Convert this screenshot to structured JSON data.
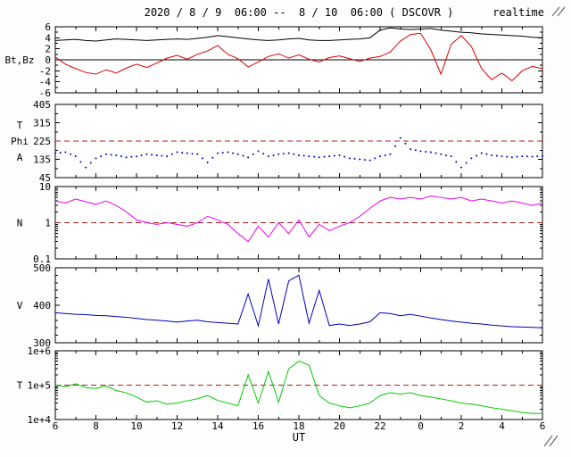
{
  "header": {
    "title": "2020 / 8 / 9  06:00 --  8 / 10  06:00 ( DSCOVR )",
    "realtime": "realtime"
  },
  "chart_data": {
    "type": "line",
    "title": "2020 / 8 / 9  06:00 --  8 / 10  06:00 ( DSCOVR )",
    "xlabel": "UT",
    "x_range": [
      6,
      30
    ],
    "x_ticks": {
      "values": [
        6,
        8,
        10,
        12,
        14,
        16,
        18,
        20,
        22,
        24,
        26,
        28,
        30
      ],
      "labels": [
        "6",
        "8",
        "10",
        "12",
        "14",
        "16",
        "18",
        "20",
        "22",
        "0",
        "2",
        "4",
        "6"
      ]
    },
    "x_minor_step": 1,
    "x_hours": [
      6,
      6.5,
      7,
      7.5,
      8,
      8.5,
      9,
      9.5,
      10,
      10.5,
      11,
      11.5,
      12,
      12.5,
      13,
      13.5,
      14,
      14.5,
      15,
      15.5,
      16,
      16.5,
      17,
      17.5,
      18,
      18.5,
      19,
      19.5,
      20,
      20.5,
      21,
      21.5,
      22,
      22.5,
      23,
      23.5,
      24,
      24.5,
      25,
      25.5,
      26,
      26.5,
      27,
      27.5,
      28,
      28.5,
      29,
      29.5,
      30
    ],
    "panels": [
      {
        "id": "btbz",
        "label_lines": [
          "Bt,Bz"
        ],
        "yscale": "linear",
        "ymin": -6,
        "ymax": 6,
        "yticks": [
          {
            "v": 6,
            "l": "6"
          },
          {
            "v": 4,
            "l": "4"
          },
          {
            "v": 2,
            "l": "2"
          },
          {
            "v": 0,
            "l": "0"
          },
          {
            "v": -2,
            "l": "-2"
          },
          {
            "v": -4,
            "l": "-4"
          },
          {
            "v": -6,
            "l": "-6"
          }
        ],
        "y_minor_step": 1,
        "zero_line": 0,
        "series": [
          {
            "name": "Bt",
            "color": "#000000",
            "style": "line",
            "values": [
              3.5,
              3.6,
              3.7,
              3.5,
              3.4,
              3.6,
              3.8,
              3.7,
              3.6,
              3.5,
              3.6,
              3.7,
              3.8,
              3.7,
              3.9,
              4.1,
              4.4,
              4.2,
              4.0,
              3.8,
              3.6,
              3.5,
              3.6,
              3.8,
              3.9,
              3.6,
              3.5,
              3.5,
              3.6,
              3.7,
              3.8,
              4.0,
              5.4,
              5.8,
              5.6,
              5.5,
              5.6,
              5.7,
              5.4,
              5.2,
              5.0,
              4.9,
              4.7,
              4.6,
              4.5,
              4.4,
              4.3,
              4.1,
              4.0
            ]
          },
          {
            "name": "Bz",
            "color": "#dd0000",
            "style": "line",
            "values": [
              0.5,
              -0.8,
              -1.6,
              -2.3,
              -2.6,
              -1.8,
              -2.4,
              -1.5,
              -0.8,
              -1.4,
              -0.6,
              0.3,
              0.8,
              0.1,
              1.0,
              1.6,
              2.6,
              1.0,
              0.2,
              -1.3,
              -0.4,
              0.6,
              1.1,
              0.3,
              0.9,
              0.1,
              -0.4,
              0.4,
              0.7,
              0.2,
              -0.3,
              0.3,
              0.6,
              1.4,
              3.4,
              4.6,
              4.8,
              1.8,
              -2.6,
              2.8,
              4.4,
              2.4,
              -1.6,
              -3.6,
              -2.4,
              -3.8,
              -2.0,
              -1.2,
              -1.6
            ]
          }
        ]
      },
      {
        "id": "phi",
        "label_lines": [
          "T",
          "Phi",
          "A"
        ],
        "yscale": "linear",
        "ymin": 45,
        "ymax": 405,
        "yticks": [
          {
            "v": 405,
            "l": "405"
          },
          {
            "v": 315,
            "l": "315"
          },
          {
            "v": 225,
            "l": "225"
          },
          {
            "v": 135,
            "l": "135"
          },
          {
            "v": 45,
            "l": "45"
          }
        ],
        "y_minor_step": 45,
        "ref_line": {
          "v": 225,
          "color": "#aa2222"
        },
        "series": [
          {
            "name": "Phi",
            "color": "#0000bb",
            "style": "dots",
            "values": [
              165,
              170,
              150,
              95,
              140,
              160,
              155,
              145,
              150,
              160,
              155,
              150,
              170,
              165,
              160,
              120,
              165,
              170,
              160,
              145,
              175,
              150,
              160,
              165,
              155,
              150,
              145,
              150,
              155,
              140,
              135,
              130,
              150,
              160,
              240,
              185,
              175,
              170,
              160,
              150,
              95,
              140,
              165,
              155,
              150,
              145,
              150,
              148,
              152
            ]
          }
        ]
      },
      {
        "id": "n",
        "label_lines": [
          "N"
        ],
        "yscale": "log",
        "ymin": 0.1,
        "ymax": 10,
        "yticks": [
          {
            "v": 10,
            "l": "10"
          },
          {
            "v": 1,
            "l": "1"
          },
          {
            "v": 0.1,
            "l": "0.1"
          }
        ],
        "ref_line": {
          "v": 1,
          "color": "#aa2222"
        },
        "series": [
          {
            "name": "N",
            "color": "#ee00ee",
            "style": "line",
            "values": [
              4.0,
              3.5,
              4.5,
              3.8,
              3.2,
              4.0,
              3.0,
              2.0,
              1.2,
              1.0,
              0.9,
              1.0,
              0.9,
              0.8,
              1.0,
              1.5,
              1.2,
              0.9,
              0.5,
              0.3,
              0.8,
              0.4,
              1.0,
              0.5,
              1.2,
              0.4,
              0.9,
              0.6,
              0.8,
              1.0,
              1.5,
              2.5,
              4.0,
              5.0,
              4.5,
              5.0,
              4.5,
              5.5,
              5.0,
              4.5,
              5.0,
              4.0,
              4.5,
              4.0,
              3.5,
              4.0,
              3.5,
              3.0,
              3.5
            ]
          }
        ]
      },
      {
        "id": "v",
        "label_lines": [
          "V"
        ],
        "yscale": "linear",
        "ymin": 300,
        "ymax": 500,
        "yticks": [
          {
            "v": 500,
            "l": "500"
          },
          {
            "v": 400,
            "l": "400"
          },
          {
            "v": 300,
            "l": "300"
          }
        ],
        "y_minor_step": 20,
        "series": [
          {
            "name": "V",
            "color": "#0000bb",
            "style": "line",
            "values": [
              380,
              378,
              376,
              375,
              373,
              372,
              370,
              368,
              365,
              362,
              360,
              358,
              355,
              358,
              360,
              356,
              354,
              352,
              350,
              430,
              345,
              470,
              350,
              465,
              480,
              352,
              440,
              346,
              350,
              346,
              350,
              356,
              380,
              378,
              372,
              376,
              371,
              366,
              362,
              358,
              355,
              352,
              350,
              347,
              345,
              343,
              342,
              341,
              340
            ]
          }
        ]
      },
      {
        "id": "t",
        "label_lines": [
          "T"
        ],
        "yscale": "log",
        "ymin": 10000,
        "ymax": 1000000,
        "yticks": [
          {
            "v": 1000000,
            "l": "1e+6"
          },
          {
            "v": 100000,
            "l": "1e+5"
          },
          {
            "v": 10000,
            "l": "1e+4"
          }
        ],
        "ref_line": {
          "v": 100000,
          "color": "#aa2222"
        },
        "series": [
          {
            "name": "T",
            "color": "#00cc00",
            "style": "line",
            "values": [
              100000,
              90000,
              110000,
              85000,
              80000,
              95000,
              70000,
              60000,
              45000,
              32000,
              35000,
              28000,
              30000,
              35000,
              40000,
              50000,
              36000,
              30000,
              25000,
              200000,
              30000,
              250000,
              32000,
              300000,
              500000,
              380000,
              50000,
              30000,
              25000,
              22000,
              25000,
              30000,
              50000,
              60000,
              55000,
              60000,
              50000,
              45000,
              40000,
              35000,
              30000,
              28000,
              25000,
              22000,
              20000,
              18000,
              16000,
              15000,
              15000
            ]
          }
        ]
      }
    ]
  }
}
